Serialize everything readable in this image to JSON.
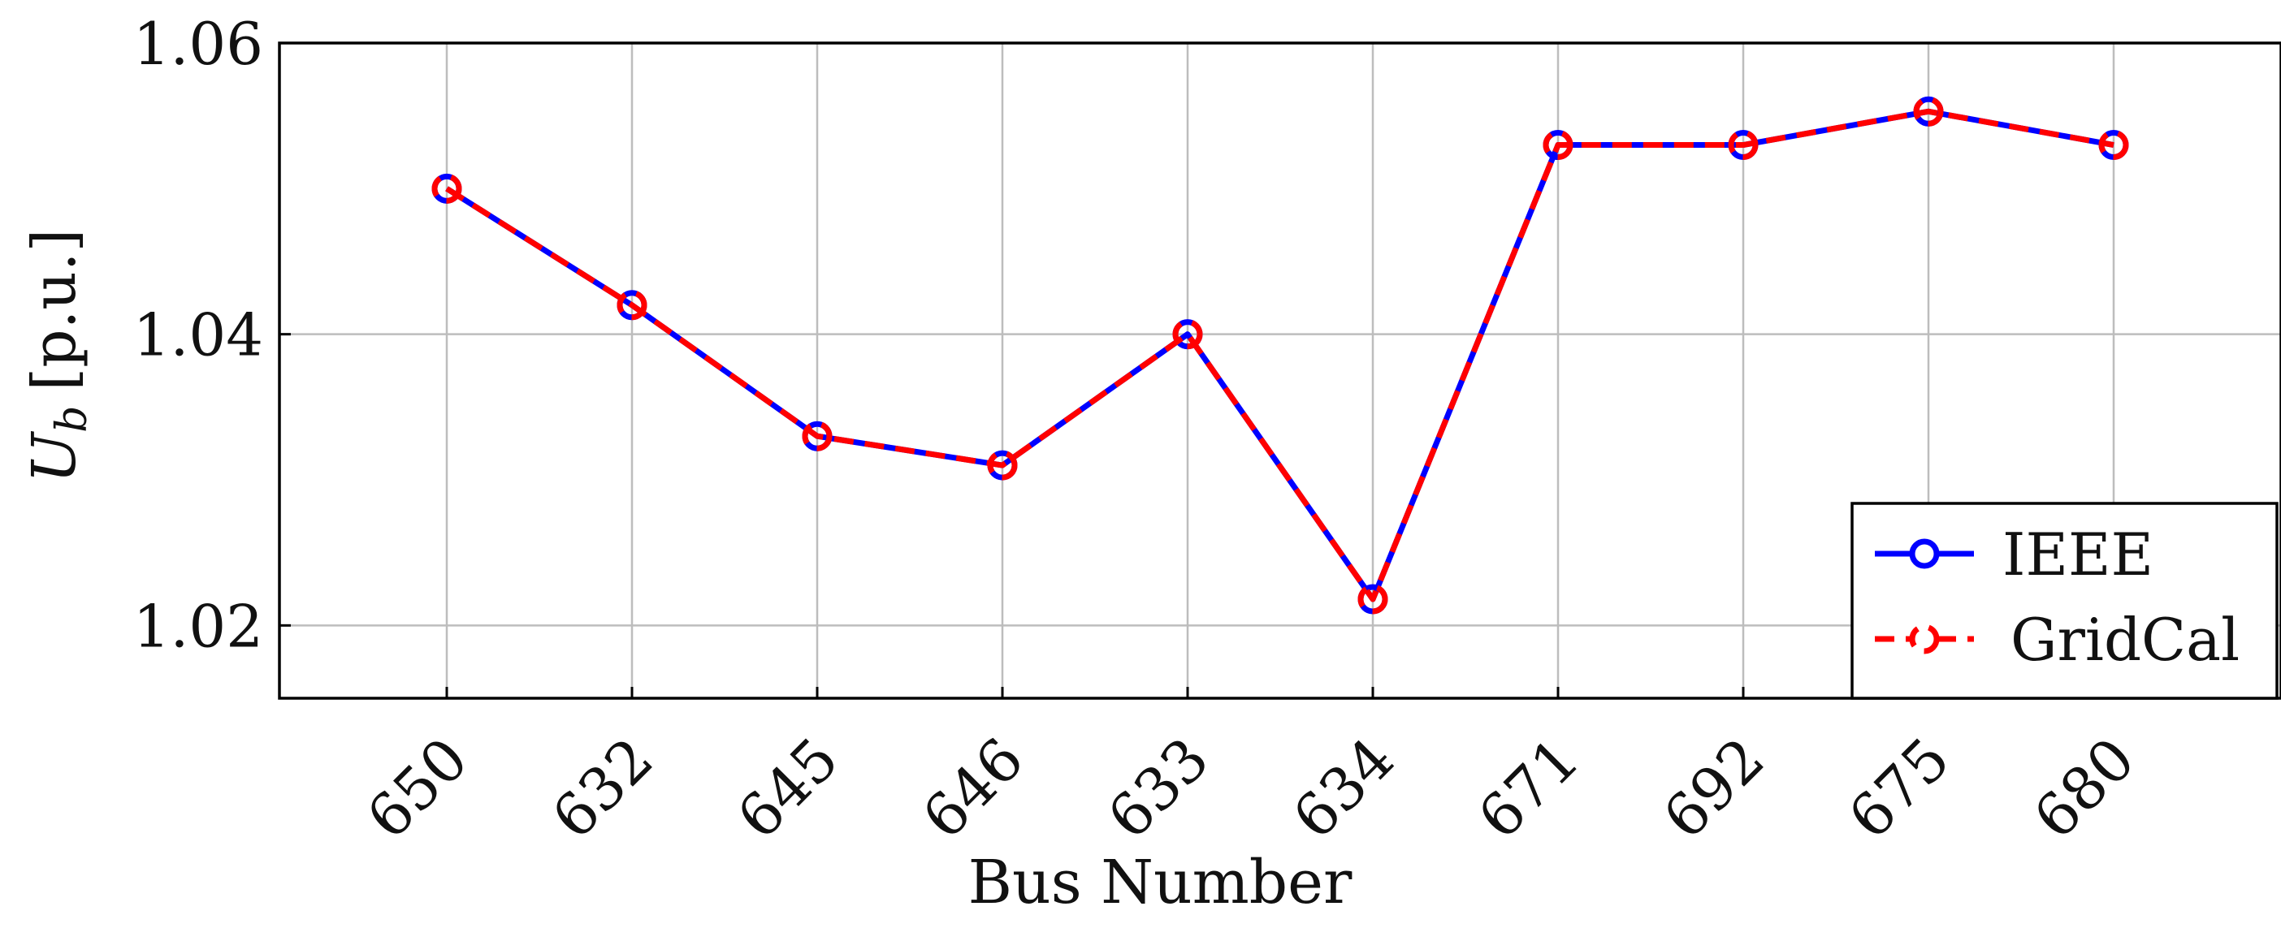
{
  "chart_data": {
    "type": "line",
    "categories": [
      "650",
      "632",
      "645",
      "646",
      "633",
      "634",
      "671",
      "692",
      "675",
      "680"
    ],
    "xlabel": "Bus Number",
    "ylabel": {
      "main": "U",
      "subscript": "b",
      "unit": "[p.u.]"
    },
    "ylim": [
      1.015,
      1.06
    ],
    "yticks": [
      "1.02",
      "1.04",
      "1.06"
    ],
    "grid": true,
    "legend_position": "bottom-right",
    "series": [
      {
        "name": "IEEE",
        "color": "#0000ff",
        "line_style": "solid",
        "marker": "circle",
        "values": [
          1.05,
          1.042,
          1.033,
          1.031,
          1.04,
          1.0218,
          1.053,
          1.053,
          1.0553,
          1.053
        ]
      },
      {
        "name": "GridCal",
        "color": "#ff0000",
        "line_style": "dashed",
        "marker": "circle",
        "values": [
          1.05,
          1.042,
          1.033,
          1.031,
          1.04,
          1.0218,
          1.053,
          1.053,
          1.0553,
          1.053
        ]
      }
    ]
  }
}
